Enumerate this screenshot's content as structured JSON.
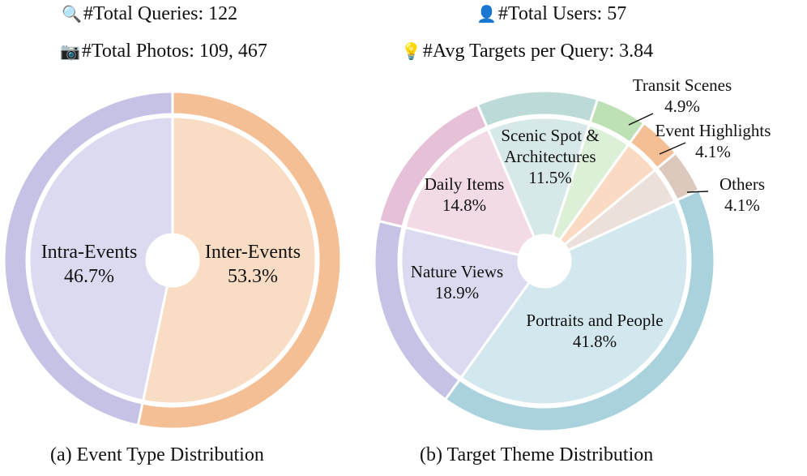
{
  "header": {
    "total_queries": {
      "icon": "magnifier-icon",
      "text": "#Total Queries: 122"
    },
    "total_photos": {
      "icon": "camera-icon",
      "text": "#Total Photos: 109, 467"
    },
    "total_users": {
      "icon": "user-icon",
      "text": "#Total Users:  57"
    },
    "avg_targets": {
      "icon": "lightbulb-icon",
      "text": "#Avg Targets per Query: 3.84"
    }
  },
  "chart_data": [
    {
      "type": "pie",
      "title": "(a) Event Type Distribution",
      "categories": [
        "Inter-Events",
        "Intra-Events"
      ],
      "values": [
        53.3,
        46.7
      ],
      "labels": [
        "53.3%",
        "46.7%"
      ],
      "colors_inner": [
        "#f9dcc4",
        "#dcdaf0"
      ],
      "colors_outer": [
        "#f5bf95",
        "#c5c2e6"
      ]
    },
    {
      "type": "pie",
      "title": "(b) Target Theme Distribution",
      "categories": [
        "Portraits and People",
        "Nature Views",
        "Daily Items",
        "Scenic Spot & Architectures",
        "Transit Scenes",
        "Event Highlights",
        "Others"
      ],
      "values": [
        41.8,
        18.9,
        14.8,
        11.5,
        4.9,
        4.1,
        4.1
      ],
      "labels": [
        "41.8%",
        "18.9%",
        "14.8%",
        "11.5%",
        "4.9%",
        "4.1%",
        "4.1%"
      ],
      "colors_inner": [
        "#d3e7ee",
        "#dcdaf0",
        "#f2dbe6",
        "#d6e8e8",
        "#dcf0d8",
        "#fadac2",
        "#ece0da"
      ],
      "colors_outer": [
        "#a9d2dc",
        "#c5c2e6",
        "#e6c0d6",
        "#bcdbd8",
        "#bde0b5",
        "#f5bf95",
        "#dcc8bc"
      ]
    }
  ]
}
